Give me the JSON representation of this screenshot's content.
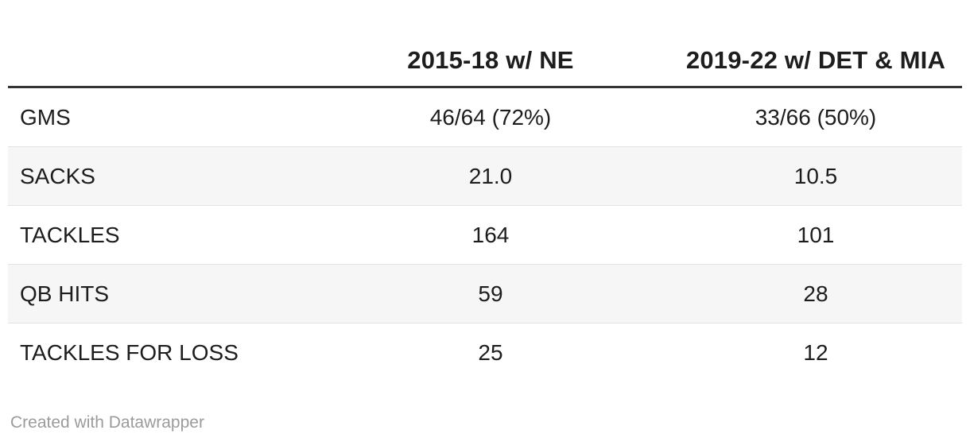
{
  "chart_data": {
    "type": "table",
    "columns": [
      "",
      "2015-18 w/ NE",
      "2019-22 w/ DET & MIA"
    ],
    "rows": [
      [
        "GMS",
        "46/64 (72%)",
        "33/66 (50%)"
      ],
      [
        "SACKS",
        "21.0",
        "10.5"
      ],
      [
        "TACKLES",
        "164",
        "101"
      ],
      [
        "QB HITS",
        "59",
        "28"
      ],
      [
        "TACKLES FOR LOSS",
        "25",
        "12"
      ]
    ],
    "layout_hints": {
      "label_column_align": "left",
      "value_columns_align": "center",
      "striped_rows": [
        2,
        4
      ],
      "header_rule": "thick-bottom-border"
    }
  },
  "footer": {
    "attribution": "Created with Datawrapper"
  },
  "colors": {
    "text": "#1d1d1d",
    "header_rule": "#333333",
    "row_stripe": "#f6f6f6",
    "row_border": "#e3e3e3",
    "footer_text": "#9b9b9b"
  }
}
